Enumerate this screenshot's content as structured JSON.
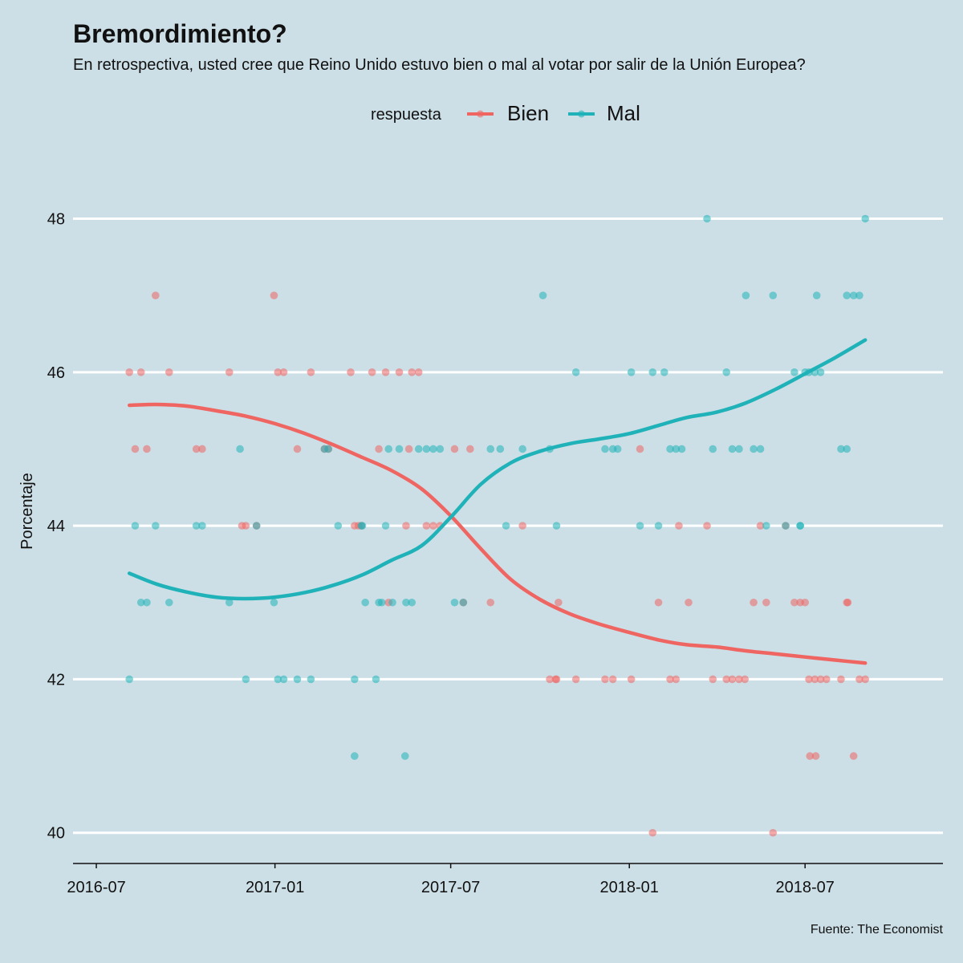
{
  "chart_data": {
    "type": "scatter",
    "title": "Bremordimiento?",
    "subtitle": "En retrospectiva, usted cree que Reino Unido estuvo bien o mal al votar por salir de la Unión Europea?",
    "ylabel": "Porcentaje",
    "xlabel": "",
    "ylim": [
      39.6,
      48.8
    ],
    "xlim": [
      "2016-06-07",
      "2018-11-20"
    ],
    "yticks": [
      40,
      42,
      44,
      46,
      48
    ],
    "xticks": [
      "2016-07-01",
      "2017-01-01",
      "2017-07-01",
      "2018-01-01",
      "2018-07-01"
    ],
    "xtick_labels": [
      "2016-07",
      "2017-01",
      "2017-07",
      "2018-01",
      "2018-07"
    ],
    "grid": "horizontal",
    "legend": {
      "position": "top",
      "title": "respuesta",
      "entries": [
        "Bien",
        "Mal"
      ]
    },
    "caption": "Fuente: The Economist",
    "series": [
      {
        "name": "Bien",
        "color": "#ef6562",
        "points": [
          [
            "2016-08-04",
            46
          ],
          [
            "2016-08-10",
            45
          ],
          [
            "2016-08-16",
            46
          ],
          [
            "2016-08-22",
            45
          ],
          [
            "2016-08-31",
            47
          ],
          [
            "2016-09-14",
            46
          ],
          [
            "2016-10-12",
            45
          ],
          [
            "2016-10-18",
            45
          ],
          [
            "2016-11-15",
            46
          ],
          [
            "2016-11-28",
            44
          ],
          [
            "2016-12-02",
            44
          ],
          [
            "2016-12-13",
            44
          ],
          [
            "2016-12-31",
            47
          ],
          [
            "2017-01-04",
            46
          ],
          [
            "2017-01-10",
            46
          ],
          [
            "2017-01-24",
            45
          ],
          [
            "2017-02-07",
            46
          ],
          [
            "2017-02-21",
            45
          ],
          [
            "2017-02-25",
            45
          ],
          [
            "2017-03-20",
            46
          ],
          [
            "2017-03-24",
            44
          ],
          [
            "2017-03-28",
            44
          ],
          [
            "2017-03-31",
            44
          ],
          [
            "2017-04-11",
            46
          ],
          [
            "2017-04-18",
            45
          ],
          [
            "2017-04-25",
            46
          ],
          [
            "2017-04-28",
            43
          ],
          [
            "2017-05-09",
            46
          ],
          [
            "2017-05-16",
            44
          ],
          [
            "2017-05-19",
            45
          ],
          [
            "2017-05-22",
            46
          ],
          [
            "2017-05-29",
            46
          ],
          [
            "2017-06-06",
            44
          ],
          [
            "2017-06-13",
            44
          ],
          [
            "2017-06-20",
            44
          ],
          [
            "2017-07-05",
            45
          ],
          [
            "2017-07-14",
            43
          ],
          [
            "2017-07-21",
            45
          ],
          [
            "2017-08-11",
            43
          ],
          [
            "2017-09-13",
            44
          ],
          [
            "2017-10-11",
            42
          ],
          [
            "2017-10-17",
            42
          ],
          [
            "2017-10-18",
            42
          ],
          [
            "2017-10-20",
            43
          ],
          [
            "2017-11-07",
            42
          ],
          [
            "2017-12-07",
            42
          ],
          [
            "2017-12-15",
            42
          ],
          [
            "2018-01-03",
            42
          ],
          [
            "2018-01-12",
            45
          ],
          [
            "2018-01-25",
            40
          ],
          [
            "2018-01-31",
            43
          ],
          [
            "2018-02-12",
            42
          ],
          [
            "2018-02-18",
            42
          ],
          [
            "2018-02-21",
            44
          ],
          [
            "2018-03-03",
            43
          ],
          [
            "2018-03-22",
            44
          ],
          [
            "2018-03-28",
            42
          ],
          [
            "2018-04-11",
            42
          ],
          [
            "2018-04-17",
            42
          ],
          [
            "2018-04-24",
            42
          ],
          [
            "2018-04-30",
            42
          ],
          [
            "2018-05-09",
            43
          ],
          [
            "2018-05-16",
            44
          ],
          [
            "2018-05-22",
            43
          ],
          [
            "2018-05-29",
            40
          ],
          [
            "2018-06-11",
            44
          ],
          [
            "2018-06-20",
            43
          ],
          [
            "2018-06-26",
            43
          ],
          [
            "2018-07-01",
            43
          ],
          [
            "2018-07-05",
            42
          ],
          [
            "2018-07-06",
            41
          ],
          [
            "2018-07-11",
            42
          ],
          [
            "2018-07-12",
            41
          ],
          [
            "2018-07-17",
            42
          ],
          [
            "2018-07-23",
            42
          ],
          [
            "2018-08-07",
            42
          ],
          [
            "2018-08-13",
            43
          ],
          [
            "2018-08-14",
            43
          ],
          [
            "2018-08-20",
            41
          ],
          [
            "2018-08-26",
            42
          ],
          [
            "2018-09-01",
            42
          ]
        ],
        "trend": [
          [
            "2016-08-04",
            45.57
          ],
          [
            "2016-09-01",
            45.58
          ],
          [
            "2016-10-01",
            45.56
          ],
          [
            "2016-11-01",
            45.5
          ],
          [
            "2016-12-01",
            45.43
          ],
          [
            "2017-01-01",
            45.33
          ],
          [
            "2017-02-01",
            45.2
          ],
          [
            "2017-03-01",
            45.06
          ],
          [
            "2017-04-01",
            44.89
          ],
          [
            "2017-05-01",
            44.72
          ],
          [
            "2017-06-01",
            44.48
          ],
          [
            "2017-07-01",
            44.13
          ],
          [
            "2017-08-01",
            43.7
          ],
          [
            "2017-09-01",
            43.3
          ],
          [
            "2017-10-01",
            43.04
          ],
          [
            "2017-11-01",
            42.85
          ],
          [
            "2017-12-01",
            42.72
          ],
          [
            "2018-01-01",
            42.61
          ],
          [
            "2018-02-01",
            42.51
          ],
          [
            "2018-03-01",
            42.45
          ],
          [
            "2018-04-01",
            42.42
          ],
          [
            "2018-05-01",
            42.37
          ],
          [
            "2018-06-01",
            42.33
          ],
          [
            "2018-07-01",
            42.29
          ],
          [
            "2018-08-01",
            42.25
          ],
          [
            "2018-09-01",
            42.21
          ]
        ]
      },
      {
        "name": "Mal",
        "color": "#1fb2b8",
        "points": [
          [
            "2016-08-04",
            42
          ],
          [
            "2016-08-10",
            44
          ],
          [
            "2016-08-16",
            43
          ],
          [
            "2016-08-22",
            43
          ],
          [
            "2016-08-31",
            44
          ],
          [
            "2016-09-14",
            43
          ],
          [
            "2016-10-12",
            44
          ],
          [
            "2016-10-18",
            44
          ],
          [
            "2016-11-15",
            43
          ],
          [
            "2016-11-26",
            45
          ],
          [
            "2016-12-02",
            42
          ],
          [
            "2016-12-13",
            44
          ],
          [
            "2016-12-31",
            43
          ],
          [
            "2017-01-04",
            42
          ],
          [
            "2017-01-10",
            42
          ],
          [
            "2017-01-24",
            42
          ],
          [
            "2017-02-07",
            42
          ],
          [
            "2017-02-21",
            45
          ],
          [
            "2017-02-25",
            45
          ],
          [
            "2017-03-07",
            44
          ],
          [
            "2017-03-24",
            42
          ],
          [
            "2017-03-24",
            41
          ],
          [
            "2017-03-31",
            44
          ],
          [
            "2017-04-01",
            44
          ],
          [
            "2017-04-04",
            43
          ],
          [
            "2017-04-15",
            42
          ],
          [
            "2017-04-18",
            43
          ],
          [
            "2017-04-21",
            43
          ],
          [
            "2017-04-25",
            44
          ],
          [
            "2017-04-28",
            45
          ],
          [
            "2017-05-02",
            43
          ],
          [
            "2017-05-09",
            45
          ],
          [
            "2017-05-15",
            41
          ],
          [
            "2017-05-16",
            43
          ],
          [
            "2017-05-22",
            43
          ],
          [
            "2017-05-29",
            45
          ],
          [
            "2017-06-06",
            45
          ],
          [
            "2017-06-13",
            45
          ],
          [
            "2017-06-20",
            45
          ],
          [
            "2017-07-05",
            43
          ],
          [
            "2017-07-14",
            43
          ],
          [
            "2017-08-11",
            45
          ],
          [
            "2017-08-21",
            45
          ],
          [
            "2017-08-27",
            44
          ],
          [
            "2017-09-13",
            45
          ],
          [
            "2017-10-04",
            47
          ],
          [
            "2017-10-11",
            45
          ],
          [
            "2017-10-18",
            44
          ],
          [
            "2017-11-07",
            46
          ],
          [
            "2017-12-07",
            45
          ],
          [
            "2017-12-15",
            45
          ],
          [
            "2017-12-20",
            45
          ],
          [
            "2018-01-03",
            46
          ],
          [
            "2018-01-12",
            44
          ],
          [
            "2018-01-25",
            46
          ],
          [
            "2018-01-31",
            44
          ],
          [
            "2018-02-06",
            46
          ],
          [
            "2018-02-12",
            45
          ],
          [
            "2018-02-18",
            45
          ],
          [
            "2018-02-24",
            45
          ],
          [
            "2018-03-22",
            48
          ],
          [
            "2018-03-28",
            45
          ],
          [
            "2018-04-11",
            46
          ],
          [
            "2018-04-17",
            45
          ],
          [
            "2018-04-24",
            45
          ],
          [
            "2018-05-01",
            47
          ],
          [
            "2018-05-09",
            45
          ],
          [
            "2018-05-16",
            45
          ],
          [
            "2018-05-22",
            44
          ],
          [
            "2018-05-29",
            47
          ],
          [
            "2018-06-11",
            44
          ],
          [
            "2018-06-20",
            46
          ],
          [
            "2018-06-26",
            44
          ],
          [
            "2018-06-26",
            44
          ],
          [
            "2018-07-01",
            46
          ],
          [
            "2018-07-05",
            46
          ],
          [
            "2018-07-11",
            46
          ],
          [
            "2018-07-13",
            47
          ],
          [
            "2018-07-17",
            46
          ],
          [
            "2018-08-07",
            45
          ],
          [
            "2018-08-13",
            45
          ],
          [
            "2018-08-13",
            47
          ],
          [
            "2018-08-20",
            47
          ],
          [
            "2018-08-26",
            47
          ],
          [
            "2018-09-01",
            48
          ]
        ],
        "trend": [
          [
            "2016-08-04",
            43.38
          ],
          [
            "2016-09-01",
            43.24
          ],
          [
            "2016-10-01",
            43.14
          ],
          [
            "2016-11-01",
            43.07
          ],
          [
            "2016-12-01",
            43.05
          ],
          [
            "2017-01-01",
            43.07
          ],
          [
            "2017-02-01",
            43.13
          ],
          [
            "2017-03-01",
            43.22
          ],
          [
            "2017-04-01",
            43.36
          ],
          [
            "2017-05-01",
            43.55
          ],
          [
            "2017-06-01",
            43.74
          ],
          [
            "2017-07-01",
            44.11
          ],
          [
            "2017-08-01",
            44.54
          ],
          [
            "2017-09-01",
            44.82
          ],
          [
            "2017-10-01",
            44.97
          ],
          [
            "2017-11-01",
            45.07
          ],
          [
            "2017-12-01",
            45.13
          ],
          [
            "2018-01-01",
            45.2
          ],
          [
            "2018-02-01",
            45.31
          ],
          [
            "2018-03-01",
            45.41
          ],
          [
            "2018-04-01",
            45.48
          ],
          [
            "2018-05-01",
            45.6
          ],
          [
            "2018-06-01",
            45.78
          ],
          [
            "2018-07-01",
            45.98
          ],
          [
            "2018-08-01",
            46.19
          ],
          [
            "2018-09-01",
            46.42
          ]
        ]
      }
    ]
  }
}
